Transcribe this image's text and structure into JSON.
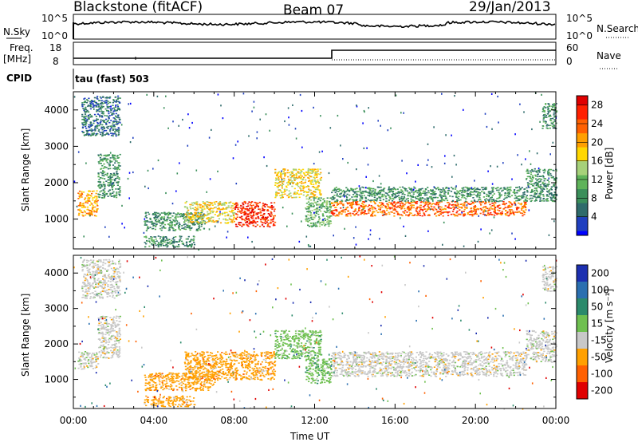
{
  "header": {
    "station": "Blackstone (fitACF)",
    "beam": "Beam 07",
    "date": "29/Jan/2013"
  },
  "top_panels": {
    "nsky_label": "N.Sky",
    "nsky_ticks": [
      "10^5",
      "10^0"
    ],
    "nsearch_label": "N.Search",
    "nsearch_ticks": [
      "10^5",
      "10^0"
    ],
    "freq_label": "Freq.",
    "freq_unit": "[MHz]",
    "freq_ticks": [
      "18",
      "8"
    ],
    "nave_label": "Nave",
    "nave_ticks": [
      "60",
      "0"
    ],
    "cpid_label": "CPID",
    "cpid_value": "tau (fast) 503"
  },
  "chart_data": [
    {
      "type": "heatmap",
      "name": "power",
      "ylabel": "Slant Range [km]",
      "ylim": [
        180,
        4500
      ],
      "yticks": [
        1000,
        2000,
        3000,
        4000
      ],
      "xlim": [
        0,
        24
      ],
      "colorbar": {
        "label": "Power [dB]",
        "ticks": [
          4,
          8,
          12,
          16,
          20,
          24,
          28
        ],
        "range": [
          0,
          30
        ],
        "colors": [
          "#0000ff",
          "#1f3fbf",
          "#2e6b6b",
          "#3a8f5a",
          "#5fb35a",
          "#a6d17a",
          "#ffd700",
          "#ffa000",
          "#ff6000",
          "#ff2000",
          "#e00000"
        ]
      },
      "bands": [
        {
          "x": [
            0.2,
            1.2
          ],
          "y": [
            1100,
            1800
          ],
          "v": 20
        },
        {
          "x": [
            1.2,
            2.3
          ],
          "y": [
            1600,
            2800
          ],
          "v": 10
        },
        {
          "x": [
            0.4,
            2.3
          ],
          "y": [
            3300,
            4400
          ],
          "v": 7
        },
        {
          "x": [
            3.5,
            6.5
          ],
          "y": [
            700,
            1200
          ],
          "v": 9
        },
        {
          "x": [
            5.5,
            8.0
          ],
          "y": [
            900,
            1500
          ],
          "v": 19
        },
        {
          "x": [
            8.0,
            10.0
          ],
          "y": [
            800,
            1500
          ],
          "v": 27
        },
        {
          "x": [
            3.5,
            6.0
          ],
          "y": [
            250,
            550
          ],
          "v": 8
        },
        {
          "x": [
            10.0,
            12.3
          ],
          "y": [
            1600,
            2400
          ],
          "v": 18
        },
        {
          "x": [
            11.5,
            12.8
          ],
          "y": [
            800,
            1600
          ],
          "v": 12
        },
        {
          "x": [
            12.8,
            22.5
          ],
          "y": [
            1100,
            1500
          ],
          "v": 25
        },
        {
          "x": [
            12.8,
            22.5
          ],
          "y": [
            1500,
            1900
          ],
          "v": 8
        },
        {
          "x": [
            22.5,
            24.0
          ],
          "y": [
            1500,
            2400
          ],
          "v": 10
        },
        {
          "x": [
            23.3,
            24.0
          ],
          "y": [
            3500,
            4200
          ],
          "v": 8
        }
      ]
    },
    {
      "type": "heatmap",
      "name": "velocity",
      "ylabel": "Slant Range [km]",
      "xlabel": "Time UT",
      "ylim": [
        180,
        4500
      ],
      "yticks": [
        1000,
        2000,
        3000,
        4000
      ],
      "xlim": [
        0,
        24
      ],
      "xticks": [
        "00:00",
        "04:00",
        "08:00",
        "12:00",
        "16:00",
        "20:00",
        "00:00"
      ],
      "colorbar": {
        "label": "Velocity [m s⁻¹]",
        "ticks": [
          "200",
          "100",
          "50",
          "15",
          "-15",
          "-50",
          "-100",
          "-200"
        ],
        "colors": [
          "#1c2fb0",
          "#2a6fb0",
          "#2b8a6b",
          "#6fc050",
          "#c8c8c8",
          "#ffa000",
          "#ff6000",
          "#e00000"
        ]
      },
      "bands": [
        {
          "x": [
            0.2,
            1.2
          ],
          "y": [
            1300,
            1800
          ],
          "v": "-15"
        },
        {
          "x": [
            1.2,
            2.3
          ],
          "y": [
            1600,
            2800
          ],
          "v": "-15"
        },
        {
          "x": [
            0.4,
            2.3
          ],
          "y": [
            3300,
            4400
          ],
          "v": "-15"
        },
        {
          "x": [
            3.5,
            7.0
          ],
          "y": [
            700,
            1200
          ],
          "v": "-50"
        },
        {
          "x": [
            5.5,
            10.0
          ],
          "y": [
            1000,
            1800
          ],
          "v": "-50"
        },
        {
          "x": [
            3.5,
            6.0
          ],
          "y": [
            250,
            550
          ],
          "v": "-50"
        },
        {
          "x": [
            10.0,
            12.3
          ],
          "y": [
            1600,
            2400
          ],
          "v": "15"
        },
        {
          "x": [
            11.5,
            12.8
          ],
          "y": [
            900,
            1600
          ],
          "v": "15"
        },
        {
          "x": [
            12.8,
            22.5
          ],
          "y": [
            1100,
            1500
          ],
          "v": "-15"
        },
        {
          "x": [
            12.8,
            22.5
          ],
          "y": [
            1500,
            1800
          ],
          "v": "-15"
        },
        {
          "x": [
            22.5,
            24.0
          ],
          "y": [
            1500,
            2400
          ],
          "v": "-15"
        },
        {
          "x": [
            23.3,
            24.0
          ],
          "y": [
            3500,
            4200
          ],
          "v": "-15"
        }
      ]
    }
  ]
}
